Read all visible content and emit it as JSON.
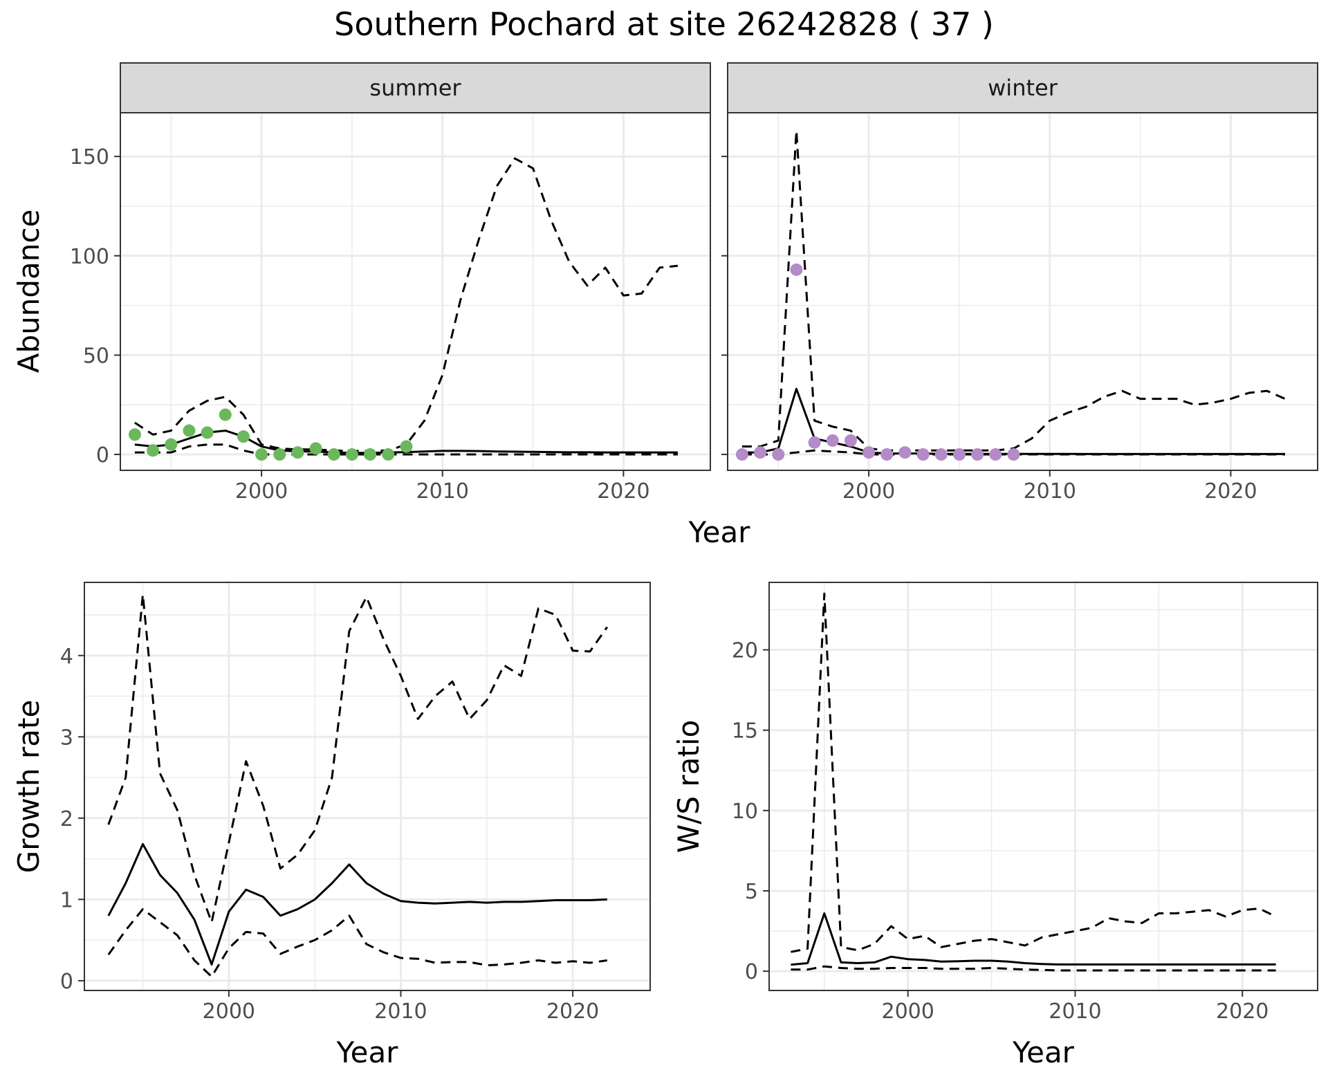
{
  "title": "Southern Pochard at site 26242828 ( 37 )",
  "colors": {
    "summer": "#6bb85c",
    "winter": "#b48ac8",
    "grid": "#ebebeb",
    "strip": "#d9d9d9",
    "line": "#000000"
  },
  "chart_data": [
    {
      "type": "line",
      "facet": "summer",
      "xlabel": "Year",
      "ylabel": "Abundance",
      "xlim": [
        1992.2,
        2024.8
      ],
      "ylim": [
        -8,
        172
      ],
      "xticks": [
        2000,
        2010,
        2020
      ],
      "yticks": [
        0,
        50,
        100,
        150
      ],
      "grid": true,
      "x": [
        1993,
        1994,
        1995,
        1996,
        1997,
        1998,
        1999,
        2000,
        2001,
        2002,
        2003,
        2004,
        2005,
        2006,
        2007,
        2008,
        2009,
        2010,
        2011,
        2012,
        2013,
        2014,
        2015,
        2016,
        2017,
        2018,
        2019,
        2020,
        2021,
        2022,
        2023
      ],
      "estimate": [
        5,
        4,
        5,
        8,
        11,
        12,
        9,
        4,
        2,
        1.5,
        1.5,
        1,
        0.8,
        0.8,
        1,
        1.2,
        1.5,
        1.8,
        1.8,
        1.7,
        1.5,
        1.4,
        1.3,
        1.2,
        1.1,
        1.1,
        1,
        1,
        1,
        1,
        1
      ],
      "upper": [
        16,
        10,
        12,
        22,
        27,
        29,
        20,
        5,
        3,
        2.5,
        2.5,
        2,
        1.8,
        1.8,
        2,
        5,
        17,
        40,
        78,
        108,
        135,
        149,
        144,
        118,
        97,
        85,
        94,
        80,
        81,
        94,
        95
      ],
      "lower": [
        1,
        1,
        1,
        4,
        5,
        5,
        2,
        0,
        0,
        0,
        0,
        0,
        0,
        0,
        0,
        0,
        0,
        0,
        0,
        0,
        0,
        0,
        0,
        0,
        0,
        0,
        0,
        0,
        0,
        0,
        0
      ],
      "observed_x": [
        1993,
        1994,
        1995,
        1996,
        1997,
        1998,
        1999,
        2000,
        2001,
        2002,
        2003,
        2004,
        2005,
        2006,
        2007,
        2008
      ],
      "observed": [
        10,
        2,
        5,
        12,
        11,
        20,
        9,
        0,
        0,
        1,
        3,
        0,
        0,
        0,
        0,
        4
      ]
    },
    {
      "type": "line",
      "facet": "winter",
      "xlabel": "Year",
      "ylabel": "Abundance",
      "xlim": [
        1992.2,
        2024.8
      ],
      "ylim": [
        -8,
        172
      ],
      "xticks": [
        2000,
        2010,
        2020
      ],
      "yticks": [
        0,
        50,
        100,
        150
      ],
      "grid": true,
      "x": [
        1993,
        1994,
        1995,
        1996,
        1997,
        1998,
        1999,
        2000,
        2001,
        2002,
        2003,
        2004,
        2005,
        2006,
        2007,
        2008,
        2009,
        2010,
        2011,
        2012,
        2013,
        2014,
        2015,
        2016,
        2017,
        2018,
        2019,
        2020,
        2021,
        2022,
        2023
      ],
      "estimate": [
        1,
        1,
        3,
        33,
        8,
        6,
        4,
        1,
        0.5,
        0.5,
        0.5,
        0.3,
        0.3,
        0.3,
        0.3,
        0.3,
        0.3,
        0.3,
        0.3,
        0.2,
        0.2,
        0.2,
        0.2,
        0.2,
        0.2,
        0.2,
        0.2,
        0.2,
        0.2,
        0.2,
        0.2
      ],
      "upper": [
        4,
        4,
        7,
        163,
        17,
        14,
        12,
        3,
        2,
        2,
        2,
        2,
        2,
        2,
        2,
        3,
        8,
        17,
        21,
        24,
        29,
        32,
        28,
        28,
        28,
        25,
        26,
        28,
        31,
        32,
        28
      ],
      "lower": [
        0,
        0,
        0,
        1,
        2,
        1.5,
        1,
        0,
        0,
        0,
        0,
        0,
        0,
        0,
        0,
        0,
        0,
        0,
        0,
        0,
        0,
        0,
        0,
        0,
        0,
        0,
        0,
        0,
        0,
        0,
        0
      ],
      "observed_x": [
        1993,
        1994,
        1995,
        1996,
        1997,
        1998,
        1999,
        2000,
        2001,
        2002,
        2003,
        2004,
        2005,
        2006,
        2007,
        2008
      ],
      "observed": [
        0,
        1,
        0,
        93,
        6,
        7,
        7,
        1,
        0,
        1,
        0,
        0,
        0,
        0,
        0,
        0
      ]
    },
    {
      "type": "line",
      "xlabel": "Year",
      "ylabel": "Growth rate",
      "xlim": [
        1991.6,
        2024.5
      ],
      "ylim": [
        -0.12,
        4.9
      ],
      "xticks": [
        2000,
        2010,
        2020
      ],
      "yticks": [
        0,
        1,
        2,
        3,
        4
      ],
      "grid": true,
      "x": [
        1993,
        1994,
        1995,
        1996,
        1997,
        1998,
        1999,
        2000,
        2001,
        2002,
        2003,
        2004,
        2005,
        2006,
        2007,
        2008,
        2009,
        2010,
        2011,
        2012,
        2013,
        2014,
        2015,
        2016,
        2017,
        2018,
        2019,
        2020,
        2021,
        2022
      ],
      "estimate": [
        0.8,
        1.2,
        1.68,
        1.3,
        1.08,
        0.75,
        0.2,
        0.85,
        1.12,
        1.03,
        0.8,
        0.88,
        1.0,
        1.2,
        1.43,
        1.2,
        1.07,
        0.98,
        0.96,
        0.95,
        0.96,
        0.97,
        0.96,
        0.97,
        0.97,
        0.98,
        0.99,
        0.99,
        0.99,
        1.0
      ],
      "upper": [
        1.92,
        2.5,
        4.75,
        2.55,
        2.1,
        1.3,
        0.72,
        1.7,
        2.7,
        2.15,
        1.38,
        1.55,
        1.85,
        2.5,
        4.3,
        4.72,
        4.2,
        3.75,
        3.22,
        3.5,
        3.68,
        3.22,
        3.45,
        3.88,
        3.75,
        4.58,
        4.5,
        4.06,
        4.05,
        4.35
      ],
      "lower": [
        0.32,
        0.62,
        0.88,
        0.72,
        0.56,
        0.25,
        0.05,
        0.4,
        0.6,
        0.58,
        0.33,
        0.42,
        0.5,
        0.62,
        0.8,
        0.45,
        0.35,
        0.28,
        0.27,
        0.22,
        0.23,
        0.23,
        0.19,
        0.2,
        0.22,
        0.25,
        0.22,
        0.24,
        0.22,
        0.25
      ]
    },
    {
      "type": "line",
      "xlabel": "Year",
      "ylabel": "W/S ratio",
      "xlim": [
        1991.7,
        2024.5
      ],
      "ylim": [
        -1.2,
        24.2
      ],
      "xticks": [
        2000,
        2010,
        2020
      ],
      "yticks": [
        0,
        5,
        10,
        15,
        20
      ],
      "grid": true,
      "x": [
        1993,
        1994,
        1995,
        1996,
        1997,
        1998,
        1999,
        2000,
        2001,
        2002,
        2003,
        2004,
        2005,
        2006,
        2007,
        2008,
        2009,
        2010,
        2011,
        2012,
        2013,
        2014,
        2015,
        2016,
        2017,
        2018,
        2019,
        2020,
        2021,
        2022
      ],
      "estimate": [
        0.4,
        0.5,
        3.6,
        0.55,
        0.5,
        0.55,
        0.9,
        0.75,
        0.7,
        0.6,
        0.62,
        0.65,
        0.65,
        0.6,
        0.5,
        0.45,
        0.42,
        0.42,
        0.42,
        0.42,
        0.42,
        0.42,
        0.42,
        0.42,
        0.42,
        0.42,
        0.42,
        0.42,
        0.42,
        0.42
      ],
      "upper": [
        1.2,
        1.4,
        23.5,
        1.5,
        1.3,
        1.7,
        2.8,
        2.0,
        2.2,
        1.5,
        1.7,
        1.9,
        2.0,
        1.8,
        1.6,
        2.1,
        2.3,
        2.5,
        2.7,
        3.3,
        3.1,
        3.0,
        3.6,
        3.6,
        3.7,
        3.8,
        3.4,
        3.8,
        3.9,
        3.4
      ],
      "lower": [
        0.1,
        0.1,
        0.3,
        0.2,
        0.15,
        0.15,
        0.2,
        0.2,
        0.2,
        0.15,
        0.15,
        0.15,
        0.2,
        0.15,
        0.1,
        0.08,
        0.05,
        0.05,
        0.05,
        0.05,
        0.05,
        0.05,
        0.05,
        0.05,
        0.05,
        0.05,
        0.05,
        0.05,
        0.05,
        0.05
      ]
    }
  ]
}
